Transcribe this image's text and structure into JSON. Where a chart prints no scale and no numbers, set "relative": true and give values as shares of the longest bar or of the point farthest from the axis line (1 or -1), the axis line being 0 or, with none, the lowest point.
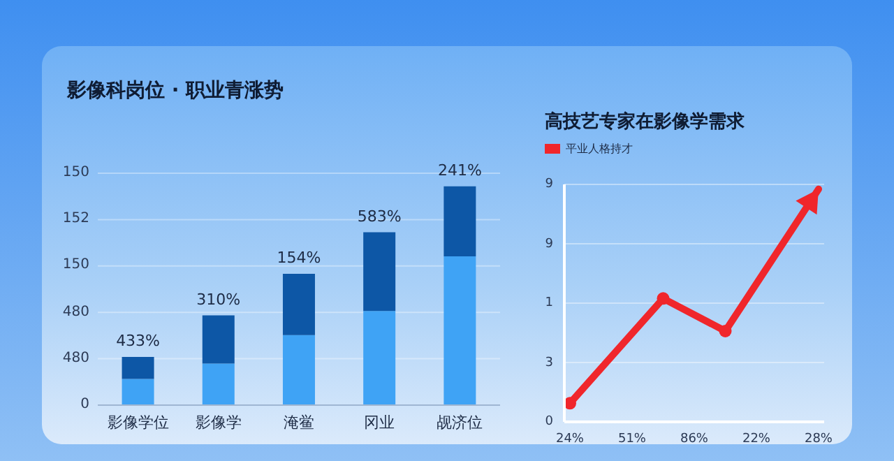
{
  "chart_data": [
    {
      "type": "bar",
      "title": "影像科岗位 · 职业青涨势",
      "categories": [
        "影像学位",
        "影像学",
        "淹鲎",
        "冈业",
        "觇济位"
      ],
      "stacked": true,
      "grid": "y",
      "relative": true,
      "series": [
        {
          "color": "#3fa3f5",
          "values": [
            0.12,
            0.19,
            0.32,
            0.43,
            0.68
          ]
        },
        {
          "color": "#0d57a6",
          "values": [
            0.1,
            0.22,
            0.28,
            0.36,
            0.32
          ]
        }
      ],
      "annotations": [
        "0",
        "480",
        "480",
        "150",
        "152",
        "150",
        {
          "text": "433%",
          "x": "影像学位",
          "y": 0.22
        },
        {
          "text": "310%",
          "x": "影像学",
          "y": 0.41
        },
        {
          "text": "154%",
          "x": "淹鲎",
          "y": 0.6
        },
        {
          "text": "583%",
          "x": "冈业",
          "y": 0.79
        },
        {
          "text": "241%",
          "x": "觇济位",
          "y": 1
        }
      ]
    },
    {
      "type": "line",
      "title": "高技艺专家在影像学需求",
      "legend": "top left",
      "marker": "circle",
      "grid": "y",
      "relative": true,
      "categories": [
        "24%",
        null,
        "51%",
        null,
        "86%",
        null,
        "22%",
        null,
        "28%"
      ],
      "series": [
        {
          "name": "平业人格持才",
          "color": "#f0262b",
          "values": [
            0.08,
            null,
            null,
            0.53,
            null,
            0.39,
            null,
            null,
            1
          ]
        }
      ],
      "annotations": [
        "0",
        "3",
        "1",
        "9",
        "9"
      ]
    }
  ]
}
